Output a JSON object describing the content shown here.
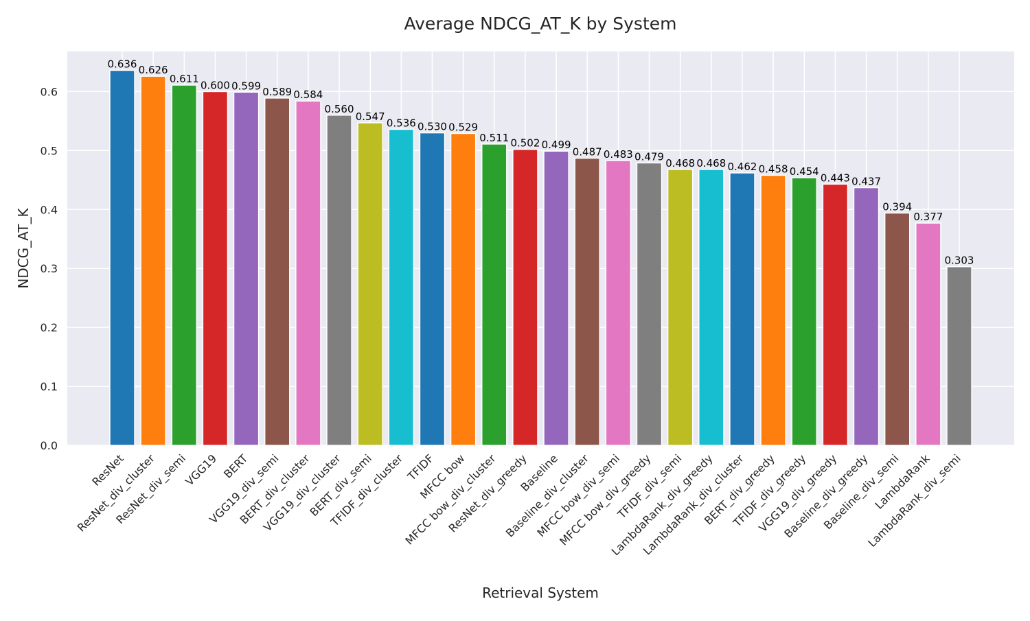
{
  "chart_data": {
    "type": "bar",
    "title": "Average NDCG_AT_K by System",
    "xlabel": "Retrieval System",
    "ylabel": "NDCG_AT_K",
    "ylim": [
      0,
      0.668
    ],
    "yticks": [
      "0.0",
      "0.1",
      "0.2",
      "0.3",
      "0.4",
      "0.5",
      "0.6"
    ],
    "grid": true,
    "categories": [
      "ResNet",
      "ResNet_div_cluster",
      "ResNet_div_semi",
      "VGG19",
      "BERT",
      "VGG19_div_semi",
      "BERT_div_cluster",
      "VGG19_div_cluster",
      "BERT_div_semi",
      "TFIDF_div_cluster",
      "TFIDF",
      "MFCC bow",
      "MFCC bow_div_cluster",
      "ResNet_div_greedy",
      "Baseline",
      "Baseline_div_cluster",
      "MFCC bow_div_semi",
      "MFCC bow_div_greedy",
      "TFIDF_div_semi",
      "LambdaRank_div_greedy",
      "LambdaRank_div_cluster",
      "BERT_div_greedy",
      "TFIDF_div_greedy",
      "VGG19_div_greedy",
      "Baseline_div_greedy",
      "Baseline_div_semi",
      "LambdaRank",
      "LambdaRank_div_semi"
    ],
    "values": [
      0.636,
      0.626,
      0.611,
      0.6,
      0.599,
      0.589,
      0.584,
      0.56,
      0.547,
      0.536,
      0.53,
      0.529,
      0.511,
      0.502,
      0.499,
      0.487,
      0.483,
      0.479,
      0.468,
      0.468,
      0.462,
      0.458,
      0.454,
      0.443,
      0.437,
      0.394,
      0.377,
      0.303
    ],
    "value_labels": [
      "0.636",
      "0.626",
      "0.611",
      "0.600",
      "0.599",
      "0.589",
      "0.584",
      "0.560",
      "0.547",
      "0.536",
      "0.530",
      "0.529",
      "0.511",
      "0.502",
      "0.499",
      "0.487",
      "0.483",
      "0.479",
      "0.468",
      "0.468",
      "0.462",
      "0.458",
      "0.454",
      "0.443",
      "0.437",
      "0.394",
      "0.377",
      "0.303"
    ],
    "colors": [
      "#1f77b4",
      "#ff7f0e",
      "#2ca02c",
      "#d62728",
      "#9467bd",
      "#8c564b",
      "#e377c2",
      "#7f7f7f",
      "#bcbd22",
      "#17becf"
    ],
    "background": "#eaeaf2",
    "grid_color": "#ffffff"
  }
}
